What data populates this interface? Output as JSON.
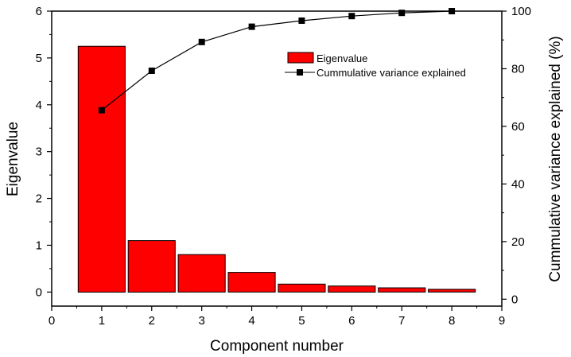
{
  "chart_data": {
    "type": "bar",
    "x": [
      1,
      2,
      3,
      4,
      5,
      6,
      7,
      8
    ],
    "xlabel": "Component number",
    "xlim": [
      0,
      9
    ],
    "xticks": [
      "0",
      "1",
      "2",
      "3",
      "4",
      "5",
      "6",
      "7",
      "8",
      "9"
    ],
    "ylabel": "Eigenvalue",
    "ylim": [
      -0.3,
      6
    ],
    "yticks": [
      "0",
      "1",
      "2",
      "3",
      "4",
      "5",
      "6"
    ],
    "y2label": "Cummulative variance explained (%)",
    "y2lim": [
      -2.4,
      100
    ],
    "y2ticks": [
      "0",
      "20",
      "40",
      "60",
      "80",
      "100"
    ],
    "grid": false,
    "legend_position": "top-right",
    "series": [
      {
        "name": "Eigenvalue",
        "type": "bar",
        "axis": "left",
        "color": "#ff0000",
        "values": [
          5.25,
          1.1,
          0.8,
          0.42,
          0.17,
          0.13,
          0.09,
          0.06
        ]
      },
      {
        "name": "Cummulative variance explained",
        "type": "line",
        "axis": "right",
        "color": "#000000",
        "marker": "square",
        "values": [
          65.6,
          79.3,
          89.3,
          94.6,
          96.7,
          98.3,
          99.4,
          100
        ]
      }
    ]
  }
}
